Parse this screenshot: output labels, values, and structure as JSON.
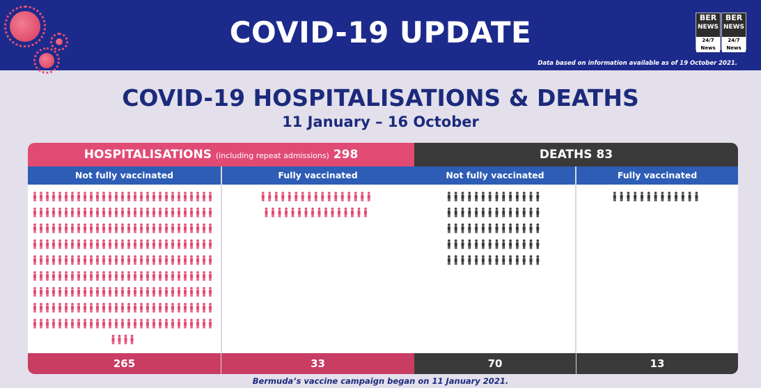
{
  "header": {
    "title": "COVID-19 UPDATE",
    "note": "Data based on information available as of 19 October 2021.",
    "logo": {
      "line1": "BER",
      "line2": "NEWS",
      "tag": "24/7 News"
    }
  },
  "title": "COVID-19 HOSPITALISATIONS & DEATHS",
  "subtitle": "11 January – 16 October",
  "hospitalisations": {
    "label": "HOSPITALISATIONS",
    "note": "(including repeat admissions)",
    "total": "298",
    "not_fully_label": "Not fully vaccinated",
    "fully_label": "Fully vaccinated",
    "not_fully_count": "265",
    "fully_count": "33"
  },
  "deaths": {
    "label": "DEATHS",
    "total": "83",
    "not_fully_label": "Not fully vaccinated",
    "fully_label": "Fully vaccinated",
    "not_fully_count": "70",
    "fully_count": "13"
  },
  "footnote": "Bermuda’s vaccine campaign began on 11 January 2021.",
  "colors": {
    "hosp": "#e14b73",
    "deaths": "#3a3a3a",
    "column_header": "#2d5db5",
    "banner": "#1c2a8c"
  },
  "icons": {
    "person": "person-icon",
    "virus": "virus-icon"
  }
}
